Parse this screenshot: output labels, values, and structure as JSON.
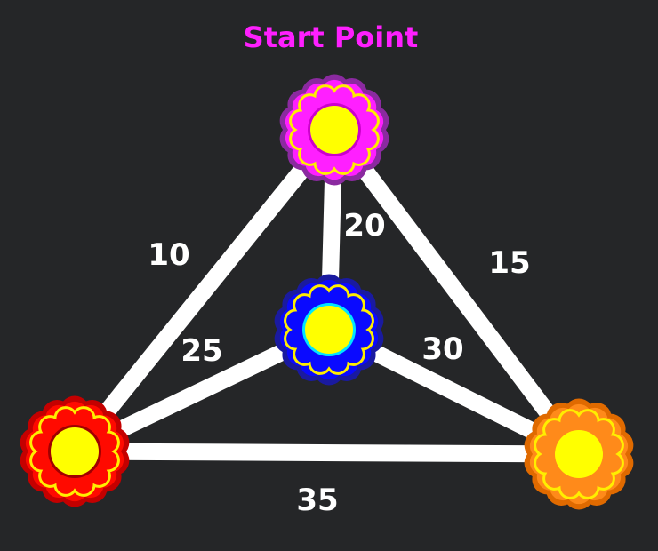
{
  "title": "Start Point",
  "colors": {
    "background": "#252628",
    "title": "#ff1fff",
    "edge": "#ffffff",
    "label": "#ffffff",
    "flower_center": "#ffff00",
    "petal_inner": "#ffee00"
  },
  "nodes": [
    {
      "id": "top",
      "color": "#ff1fff",
      "rim": "#8b2aa0",
      "center_rim": "#cc00cc"
    },
    {
      "id": "center",
      "color": "#0a0aff",
      "rim": "#1a1aa0",
      "center_rim": "#00e5ff"
    },
    {
      "id": "left",
      "color": "#ff0a00",
      "rim": "#c40000",
      "center_rim": "#a00000"
    },
    {
      "id": "right",
      "color": "#ff8a1a",
      "rim": "#e06a00",
      "center_rim": "#ff8a1a"
    }
  ],
  "edges": [
    {
      "from": "top",
      "to": "left",
      "weight": "10"
    },
    {
      "from": "top",
      "to": "right",
      "weight": "15"
    },
    {
      "from": "top",
      "to": "center",
      "weight": "20"
    },
    {
      "from": "center",
      "to": "left",
      "weight": "25"
    },
    {
      "from": "center",
      "to": "right",
      "weight": "30"
    },
    {
      "from": "left",
      "to": "right",
      "weight": "35"
    }
  ]
}
